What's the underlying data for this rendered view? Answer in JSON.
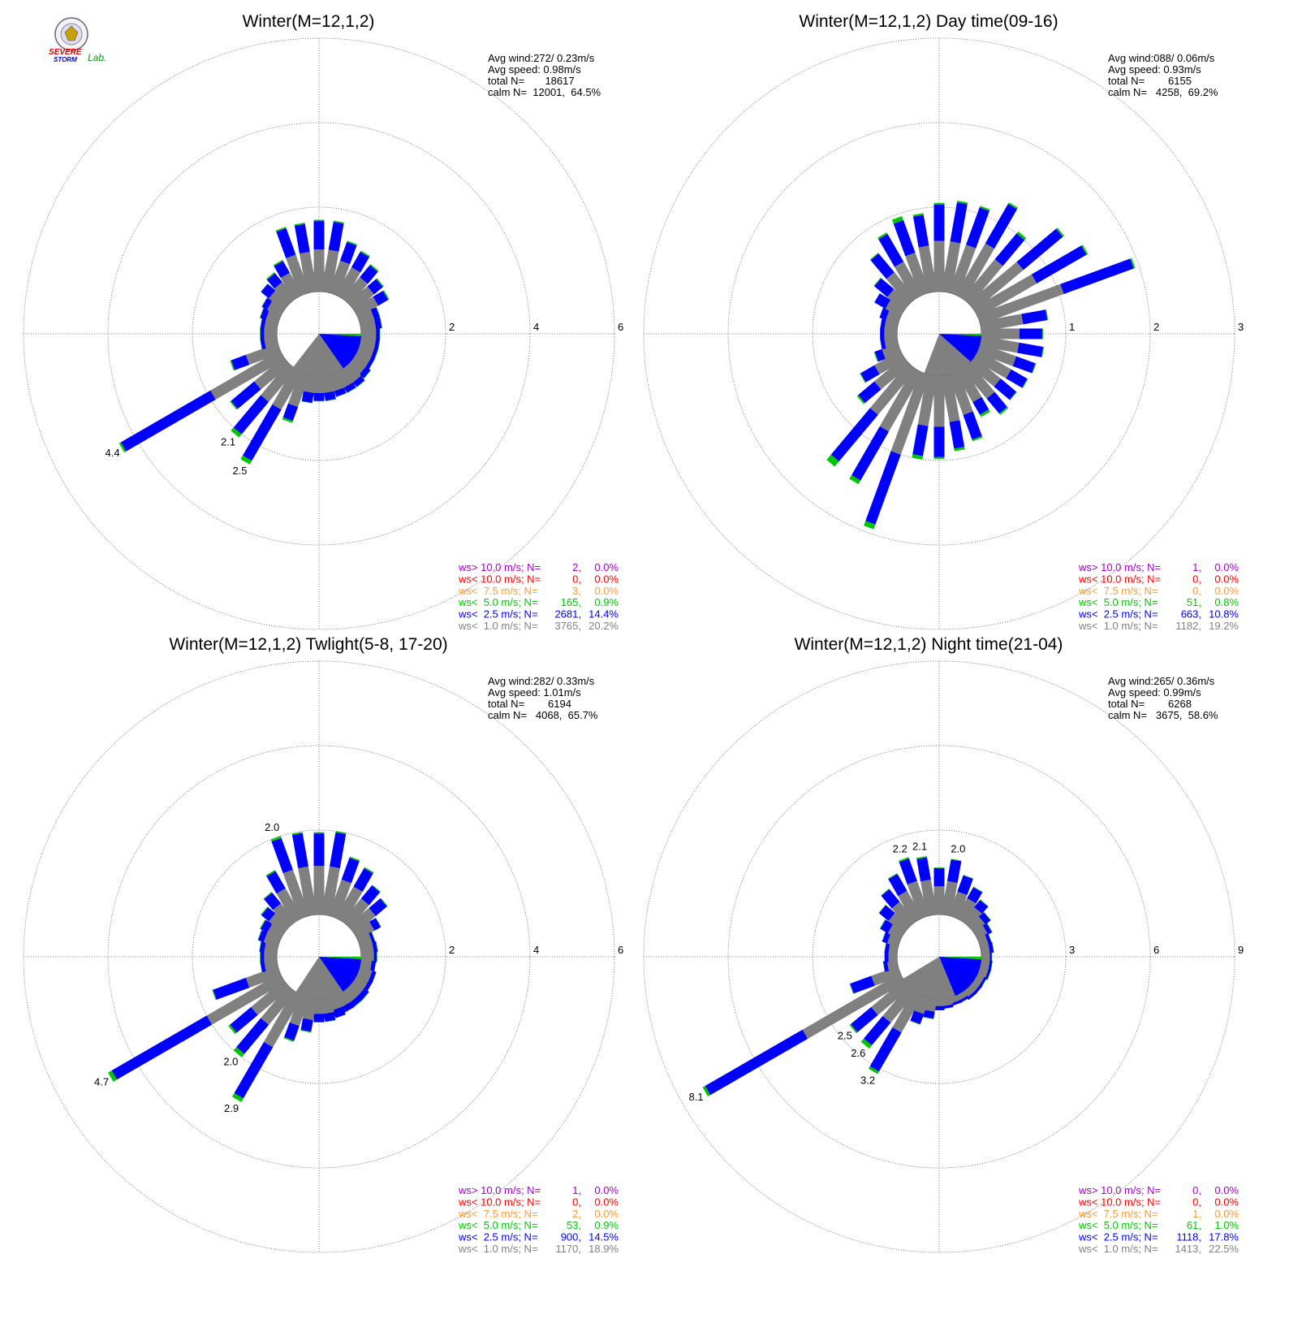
{
  "logo": {
    "top": "SEVERE",
    "bottom": "STORM",
    "side": "Lab."
  },
  "chart_data": [
    {
      "type": "windrose",
      "title": "Winter(M=12,1,2)",
      "stats": [
        "Avg wind:272/ 0.23m/s",
        "Avg speed: 0.98m/s",
        "total N=       18617",
        "calm N=  12001,  64.5%"
      ],
      "rlim": [
        0,
        6
      ],
      "rticks": [
        2,
        4,
        6
      ],
      "total_labels": [
        null,
        null,
        null,
        null,
        null,
        null,
        null,
        null,
        null,
        null,
        null,
        null,
        null,
        null,
        null,
        null,
        null,
        null,
        null,
        null,
        null,
        "2.5",
        "2.1",
        null,
        "4.4",
        null,
        null,
        null,
        null,
        null,
        null,
        null,
        null,
        null,
        null,
        null
      ],
      "series": [
        {
          "name": "ws> 10.0 m/s; N=",
          "count": "2,",
          "percent": {
            "value": 0,
            "label": "0.0%"
          },
          "color": "#a000c8"
        },
        {
          "name": "ws< 10.0 m/s; N=",
          "count": "0,",
          "percent": {
            "value": 0,
            "label": "0.0%"
          },
          "color": "#ff0000"
        },
        {
          "name": "ws<  7.5 m/s; N=",
          "count": "3,",
          "percent": {
            "value": 0,
            "label": "0.0%"
          },
          "color": "#ff9933"
        },
        {
          "name": "ws<  5.0 m/s; N=",
          "count": "165,",
          "percent": {
            "value": 0.9,
            "label": "0.9%"
          },
          "color": "#00c800",
          "values": [
            0.03,
            0.03,
            0.03,
            0.03,
            0.03,
            0.03,
            0.03,
            0.01,
            0.01,
            0.01,
            0.01,
            0.01,
            0.01,
            0.01,
            0.01,
            0.01,
            0.01,
            0.01,
            0.01,
            0.01,
            0.05,
            0.1,
            0.1,
            0.03,
            0.05,
            0.03,
            0.01,
            0.01,
            0.01,
            0.01,
            0.01,
            0.01,
            0.03,
            0.03,
            0.03,
            0.03
          ]
        },
        {
          "name": "ws<  2.5 m/s; N=",
          "count": "2681,",
          "percent": {
            "value": 14.4,
            "label": "14.4%"
          },
          "color": "#0000ff",
          "values": [
            0.67,
            0.67,
            0.47,
            0.42,
            0.37,
            0.27,
            0.27,
            0.14,
            0.14,
            0.09,
            0.09,
            0.09,
            0.09,
            0.14,
            0.14,
            0.14,
            0.14,
            0.19,
            0.19,
            0.24,
            0.35,
            1.4,
            1.0,
            0.72,
            2.45,
            0.37,
            0.09,
            0.09,
            0.09,
            0.14,
            0.14,
            0.24,
            0.27,
            0.32,
            0.67,
            0.67
          ]
        },
        {
          "name": "ws<  1.0 m/s; N=",
          "count": "3765,",
          "percent": {
            "value": 20.2,
            "label": "20.2%"
          },
          "color": "#808080",
          "values": [
            1.0,
            1.0,
            0.8,
            0.75,
            0.65,
            0.6,
            0.55,
            0.35,
            0.35,
            0.35,
            0.35,
            0.35,
            0.35,
            0.35,
            0.4,
            0.4,
            0.4,
            0.4,
            0.4,
            0.4,
            0.8,
            1.0,
            1.0,
            0.9,
            1.9,
            0.8,
            0.3,
            0.3,
            0.3,
            0.3,
            0.35,
            0.45,
            0.5,
            0.6,
            0.95,
            0.95
          ]
        }
      ]
    },
    {
      "type": "windrose",
      "title": "Winter(M=12,1,2) Day time(09-16)",
      "stats": [
        "Avg wind:088/ 0.06m/s",
        "Avg speed: 0.93m/s",
        "total N=        6155",
        "calm N=   4258,  69.2%"
      ],
      "rlim": [
        0,
        3
      ],
      "rticks": [
        1,
        2,
        3
      ],
      "series": [
        {
          "name": "ws> 10.0 m/s; N=",
          "count": "1,",
          "percent": {
            "value": 0,
            "label": "0.0%"
          },
          "color": "#a000c8"
        },
        {
          "name": "ws< 10.0 m/s; N=",
          "count": "0,",
          "percent": {
            "value": 0,
            "label": "0.0%"
          },
          "color": "#ff0000"
        },
        {
          "name": "ws<  7.5 m/s; N=",
          "count": "0,",
          "percent": {
            "value": 0,
            "label": "0.0%"
          },
          "color": "#ff9933"
        },
        {
          "name": "ws<  5.0 m/s; N=",
          "count": "51,",
          "percent": {
            "value": 0.8,
            "label": "0.8%"
          },
          "color": "#00c800",
          "values": [
            0.02,
            0.02,
            0.02,
            0.02,
            0.03,
            0.02,
            0.02,
            0.02,
            0.01,
            0.01,
            0.01,
            0.01,
            0.01,
            0.01,
            0.02,
            0.03,
            0.02,
            0.03,
            0.02,
            0.04,
            0.06,
            0.05,
            0.08,
            0.02,
            0.01,
            0.01,
            0,
            0,
            0,
            0,
            0,
            0.01,
            0.01,
            0.02,
            0.05,
            0.02
          ]
        },
        {
          "name": "ws<  2.5 m/s; N=",
          "count": "663,",
          "percent": {
            "value": 10.8,
            "label": "10.8%"
          },
          "color": "#0000ff",
          "values": [
            0.43,
            0.47,
            0.47,
            0.54,
            0.4,
            0.61,
            0.68,
            0.88,
            0.29,
            0.27,
            0.29,
            0.24,
            0.22,
            0.24,
            0.23,
            0.17,
            0.31,
            0.32,
            0.36,
            0.36,
            0.88,
            0.67,
            0.72,
            0.25,
            0.19,
            0.09,
            0.05,
            0.05,
            0.05,
            0.08,
            0.15,
            0.2,
            0.29,
            0.38,
            0.41,
            0.37
          ]
        },
        {
          "name": "ws<  1.0 m/s; N=",
          "count": "1182,",
          "percent": {
            "value": 19.2,
            "label": "19.2%"
          },
          "color": "#808080",
          "values": [
            0.6,
            0.6,
            0.6,
            0.7,
            0.6,
            0.75,
            0.8,
            1.05,
            0.5,
            0.45,
            0.45,
            0.45,
            0.45,
            0.4,
            0.45,
            0.4,
            0.5,
            0.55,
            0.6,
            0.6,
            1.0,
            0.8,
            0.7,
            0.45,
            0.35,
            0.2,
            0.15,
            0.15,
            0.15,
            0.15,
            0.2,
            0.25,
            0.4,
            0.45,
            0.5,
            0.55
          ]
        }
      ]
    },
    {
      "type": "windrose",
      "title": "Winter(M=12,1,2) Twlight(5-8, 17-20)",
      "stats": [
        "Avg wind:282/ 0.33m/s",
        "Avg speed: 1.01m/s",
        "total N=        6194",
        "calm N=   4068,  65.7%"
      ],
      "rlim": [
        0,
        6
      ],
      "rticks": [
        2,
        4,
        6
      ],
      "total_labels": [
        null,
        null,
        null,
        null,
        null,
        null,
        null,
        null,
        null,
        null,
        null,
        null,
        null,
        null,
        null,
        null,
        null,
        null,
        null,
        null,
        null,
        "2.9",
        "2.0",
        null,
        "4.7",
        null,
        null,
        null,
        null,
        null,
        null,
        null,
        null,
        null,
        "2.0",
        null
      ],
      "series": [
        {
          "name": "ws> 10.0 m/s; N=",
          "count": "1,",
          "percent": {
            "value": 0,
            "label": "0.0%"
          },
          "color": "#a000c8"
        },
        {
          "name": "ws< 10.0 m/s; N=",
          "count": "0,",
          "percent": {
            "value": 0,
            "label": "0.0%"
          },
          "color": "#ff0000"
        },
        {
          "name": "ws<  7.5 m/s; N=",
          "count": "2,",
          "percent": {
            "value": 0,
            "label": "0.0%"
          },
          "color": "#ff9933"
        },
        {
          "name": "ws<  5.0 m/s; N=",
          "count": "53,",
          "percent": {
            "value": 0.9,
            "label": "0.9%"
          },
          "color": "#00c800",
          "values": [
            0.03,
            0.03,
            0.03,
            0.03,
            0.02,
            0.02,
            0.01,
            0.01,
            0.01,
            0.01,
            0,
            0,
            0,
            0.01,
            0.01,
            0,
            0,
            0.01,
            0,
            0.02,
            0.03,
            0.1,
            0.1,
            0.05,
            0.1,
            0.02,
            0.01,
            0.01,
            0.01,
            0.01,
            0.02,
            0.02,
            0.02,
            0.03,
            0.05,
            0.03
          ]
        },
        {
          "name": "ws<  2.5 m/s; N=",
          "count": "900,",
          "percent": {
            "value": 14.5,
            "label": "14.5%"
          },
          "color": "#0000ff",
          "values": [
            0.77,
            0.82,
            0.55,
            0.5,
            0.4,
            0.35,
            0.17,
            0.07,
            0.09,
            0.07,
            0.1,
            0.1,
            0.1,
            0.14,
            0.14,
            0.15,
            0.2,
            0.19,
            0.2,
            0.28,
            0.37,
            1.4,
            0.9,
            0.65,
            2.6,
            0.83,
            0.09,
            0.09,
            0.11,
            0.14,
            0.18,
            0.23,
            0.33,
            0.47,
            0.8,
            0.8
          ]
        },
        {
          "name": "ws<  1.0 m/s; N=",
          "count": "1170,",
          "percent": {
            "value": 18.9,
            "label": "18.9%"
          },
          "color": "#808080",
          "values": [
            1.15,
            1.15,
            0.9,
            0.85,
            0.7,
            0.65,
            0.45,
            0.3,
            0.3,
            0.3,
            0.25,
            0.3,
            0.3,
            0.3,
            0.3,
            0.3,
            0.3,
            0.35,
            0.35,
            0.5,
            0.7,
            1.4,
            1.0,
            1.0,
            2.0,
            0.8,
            0.3,
            0.3,
            0.3,
            0.35,
            0.35,
            0.45,
            0.55,
            0.8,
            1.15,
            1.15
          ]
        }
      ]
    },
    {
      "type": "windrose",
      "title": "Winter(M=12,1,2) Night time(21-04)",
      "stats": [
        "Avg wind:265/ 0.36m/s",
        "Avg speed: 0.99m/s",
        "total N=        6268",
        "calm N=   3675,  58.6%"
      ],
      "rlim": [
        0,
        9
      ],
      "rticks": [
        3,
        6,
        9
      ],
      "total_labels": [
        null,
        "2.0",
        null,
        null,
        null,
        null,
        null,
        null,
        null,
        null,
        null,
        null,
        null,
        null,
        null,
        null,
        null,
        null,
        null,
        null,
        null,
        "3.2",
        "2.6",
        "2.5",
        "8.1",
        null,
        null,
        null,
        null,
        null,
        null,
        null,
        null,
        null,
        "2.2",
        "2.1"
      ],
      "series": [
        {
          "name": "ws> 10.0 m/s; N=",
          "count": "0,",
          "percent": {
            "value": 0,
            "label": "0.0%"
          },
          "color": "#a000c8"
        },
        {
          "name": "ws< 10.0 m/s; N=",
          "count": "0,",
          "percent": {
            "value": 0,
            "label": "0.0%"
          },
          "color": "#ff0000"
        },
        {
          "name": "ws<  7.5 m/s; N=",
          "count": "1,",
          "percent": {
            "value": 0,
            "label": "0.0%"
          },
          "color": "#ff9933"
        },
        {
          "name": "ws<  5.0 m/s; N=",
          "count": "61,",
          "percent": {
            "value": 1.0,
            "label": "1.0%"
          },
          "color": "#00c800",
          "values": [
            0.02,
            0.02,
            0.02,
            0.02,
            0.02,
            0.02,
            0.02,
            0.01,
            0.01,
            0.01,
            0.01,
            0.01,
            0.01,
            0,
            0,
            0,
            0,
            0,
            0,
            0.02,
            0.02,
            0.1,
            0.15,
            0.05,
            0.1,
            0.02,
            0.01,
            0.01,
            0.01,
            0.01,
            0.02,
            0.02,
            0.02,
            0.03,
            0.05,
            0.05
          ]
        },
        {
          "name": "ws<  2.5 m/s; N=",
          "count": "1118,",
          "percent": {
            "value": 17.8,
            "label": "17.8%"
          },
          "color": "#0000ff",
          "values": [
            0.65,
            0.78,
            0.61,
            0.45,
            0.33,
            0.23,
            0.16,
            0.12,
            0.14,
            0.07,
            0.09,
            0.09,
            0.09,
            0.1,
            0.1,
            0.1,
            0.1,
            0.1,
            0.15,
            0.25,
            0.38,
            1.6,
            1.05,
            0.95,
            4.0,
            0.8,
            0.14,
            0.14,
            0.14,
            0.19,
            0.31,
            0.43,
            0.58,
            0.69,
            0.85,
            0.8
          ]
        },
        {
          "name": "ws<  1.0 m/s; N=",
          "count": "1413,",
          "percent": {
            "value": 22.5,
            "label": "22.5%"
          },
          "color": "#808080",
          "values": [
            1.0,
            1.2,
            0.9,
            0.8,
            0.65,
            0.5,
            0.4,
            0.3,
            0.3,
            0.3,
            0.3,
            0.3,
            0.25,
            0.25,
            0.25,
            0.2,
            0.2,
            0.25,
            0.25,
            0.45,
            0.6,
            1.5,
            1.4,
            1.5,
            4.0,
            1.0,
            0.35,
            0.3,
            0.3,
            0.4,
            0.5,
            0.7,
            0.9,
            1.1,
            1.3,
            1.25
          ]
        }
      ]
    }
  ]
}
